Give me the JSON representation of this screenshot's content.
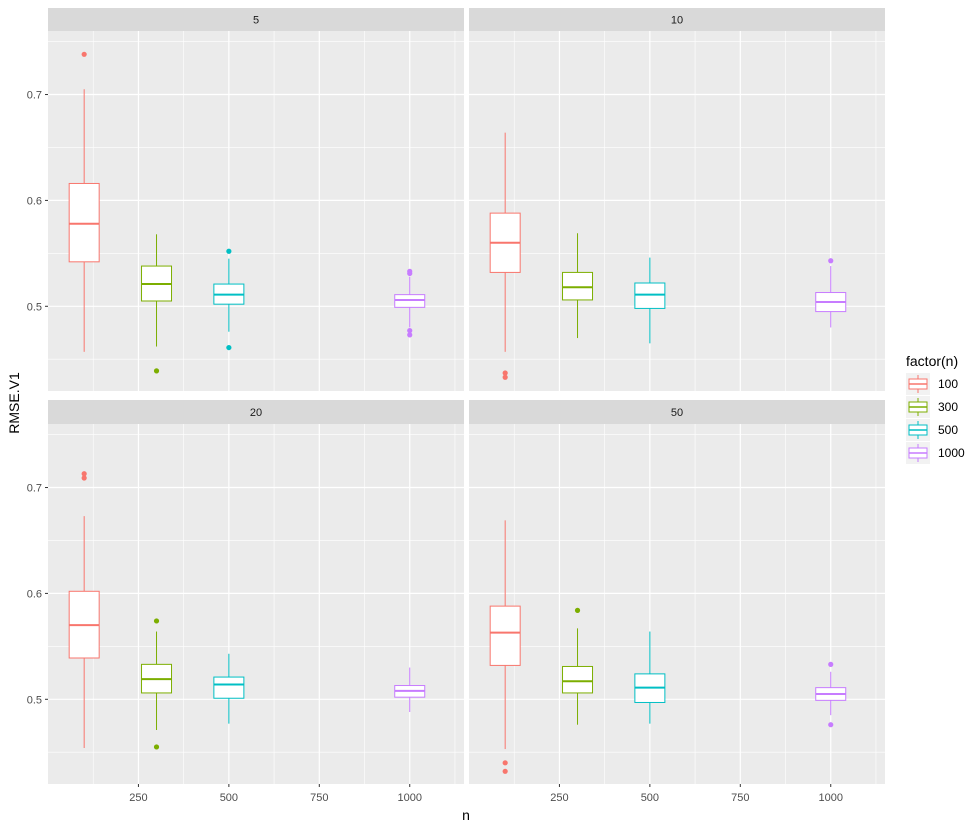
{
  "chart_data": {
    "type": "boxplot",
    "facet_by": "strip",
    "xlabel": "n",
    "ylabel": "RMSE.V1",
    "x_ticks": [
      250,
      500,
      750,
      1000
    ],
    "y_ticks": [
      0.5,
      0.6,
      0.7
    ],
    "xlim": [
      0,
      1150
    ],
    "ylim": [
      0.42,
      0.76
    ],
    "grid": true,
    "legend": {
      "title": "factor(n)",
      "position": "right",
      "entries": [
        {
          "label": "100",
          "color": "#F8766D"
        },
        {
          "label": "300",
          "color": "#7CAE00"
        },
        {
          "label": "500",
          "color": "#00BFC4"
        },
        {
          "label": "1000",
          "color": "#C77CFF"
        }
      ]
    },
    "panels": [
      {
        "strip": "5",
        "boxes": [
          {
            "group": "100",
            "x": 100,
            "lower_whisker": 0.457,
            "q1": 0.542,
            "median": 0.578,
            "q3": 0.616,
            "upper_whisker": 0.705,
            "outliers": [
              0.738
            ]
          },
          {
            "group": "300",
            "x": 300,
            "lower_whisker": 0.462,
            "q1": 0.505,
            "median": 0.521,
            "q3": 0.538,
            "upper_whisker": 0.568,
            "outliers": [
              0.439
            ]
          },
          {
            "group": "500",
            "x": 500,
            "lower_whisker": 0.476,
            "q1": 0.502,
            "median": 0.511,
            "q3": 0.521,
            "upper_whisker": 0.545,
            "outliers": [
              0.552,
              0.461
            ]
          },
          {
            "group": "1000",
            "x": 1000,
            "lower_whisker": 0.48,
            "q1": 0.499,
            "median": 0.506,
            "q3": 0.511,
            "upper_whisker": 0.528,
            "outliers": [
              0.533,
              0.531,
              0.477,
              0.473
            ]
          }
        ]
      },
      {
        "strip": "10",
        "boxes": [
          {
            "group": "100",
            "x": 100,
            "lower_whisker": 0.457,
            "q1": 0.532,
            "median": 0.56,
            "q3": 0.588,
            "upper_whisker": 0.664,
            "outliers": [
              0.437,
              0.433
            ]
          },
          {
            "group": "300",
            "x": 300,
            "lower_whisker": 0.47,
            "q1": 0.506,
            "median": 0.518,
            "q3": 0.532,
            "upper_whisker": 0.569,
            "outliers": []
          },
          {
            "group": "500",
            "x": 500,
            "lower_whisker": 0.465,
            "q1": 0.498,
            "median": 0.511,
            "q3": 0.522,
            "upper_whisker": 0.546,
            "outliers": []
          },
          {
            "group": "1000",
            "x": 1000,
            "lower_whisker": 0.48,
            "q1": 0.495,
            "median": 0.504,
            "q3": 0.513,
            "upper_whisker": 0.538,
            "outliers": [
              0.543
            ]
          }
        ]
      },
      {
        "strip": "20",
        "boxes": [
          {
            "group": "100",
            "x": 100,
            "lower_whisker": 0.454,
            "q1": 0.539,
            "median": 0.57,
            "q3": 0.602,
            "upper_whisker": 0.673,
            "outliers": [
              0.713,
              0.709
            ]
          },
          {
            "group": "300",
            "x": 300,
            "lower_whisker": 0.471,
            "q1": 0.506,
            "median": 0.519,
            "q3": 0.533,
            "upper_whisker": 0.564,
            "outliers": [
              0.574,
              0.455
            ]
          },
          {
            "group": "500",
            "x": 500,
            "lower_whisker": 0.477,
            "q1": 0.501,
            "median": 0.514,
            "q3": 0.521,
            "upper_whisker": 0.543,
            "outliers": []
          },
          {
            "group": "1000",
            "x": 1000,
            "lower_whisker": 0.488,
            "q1": 0.502,
            "median": 0.508,
            "q3": 0.513,
            "upper_whisker": 0.53,
            "outliers": []
          }
        ]
      },
      {
        "strip": "50",
        "boxes": [
          {
            "group": "100",
            "x": 100,
            "lower_whisker": 0.453,
            "q1": 0.532,
            "median": 0.563,
            "q3": 0.588,
            "upper_whisker": 0.669,
            "outliers": [
              0.44,
              0.432
            ]
          },
          {
            "group": "300",
            "x": 300,
            "lower_whisker": 0.476,
            "q1": 0.506,
            "median": 0.517,
            "q3": 0.531,
            "upper_whisker": 0.567,
            "outliers": [
              0.584
            ]
          },
          {
            "group": "500",
            "x": 500,
            "lower_whisker": 0.477,
            "q1": 0.497,
            "median": 0.511,
            "q3": 0.524,
            "upper_whisker": 0.564,
            "outliers": []
          },
          {
            "group": "1000",
            "x": 1000,
            "lower_whisker": 0.485,
            "q1": 0.499,
            "median": 0.505,
            "q3": 0.511,
            "upper_whisker": 0.526,
            "outliers": [
              0.533,
              0.476
            ]
          }
        ]
      }
    ]
  }
}
